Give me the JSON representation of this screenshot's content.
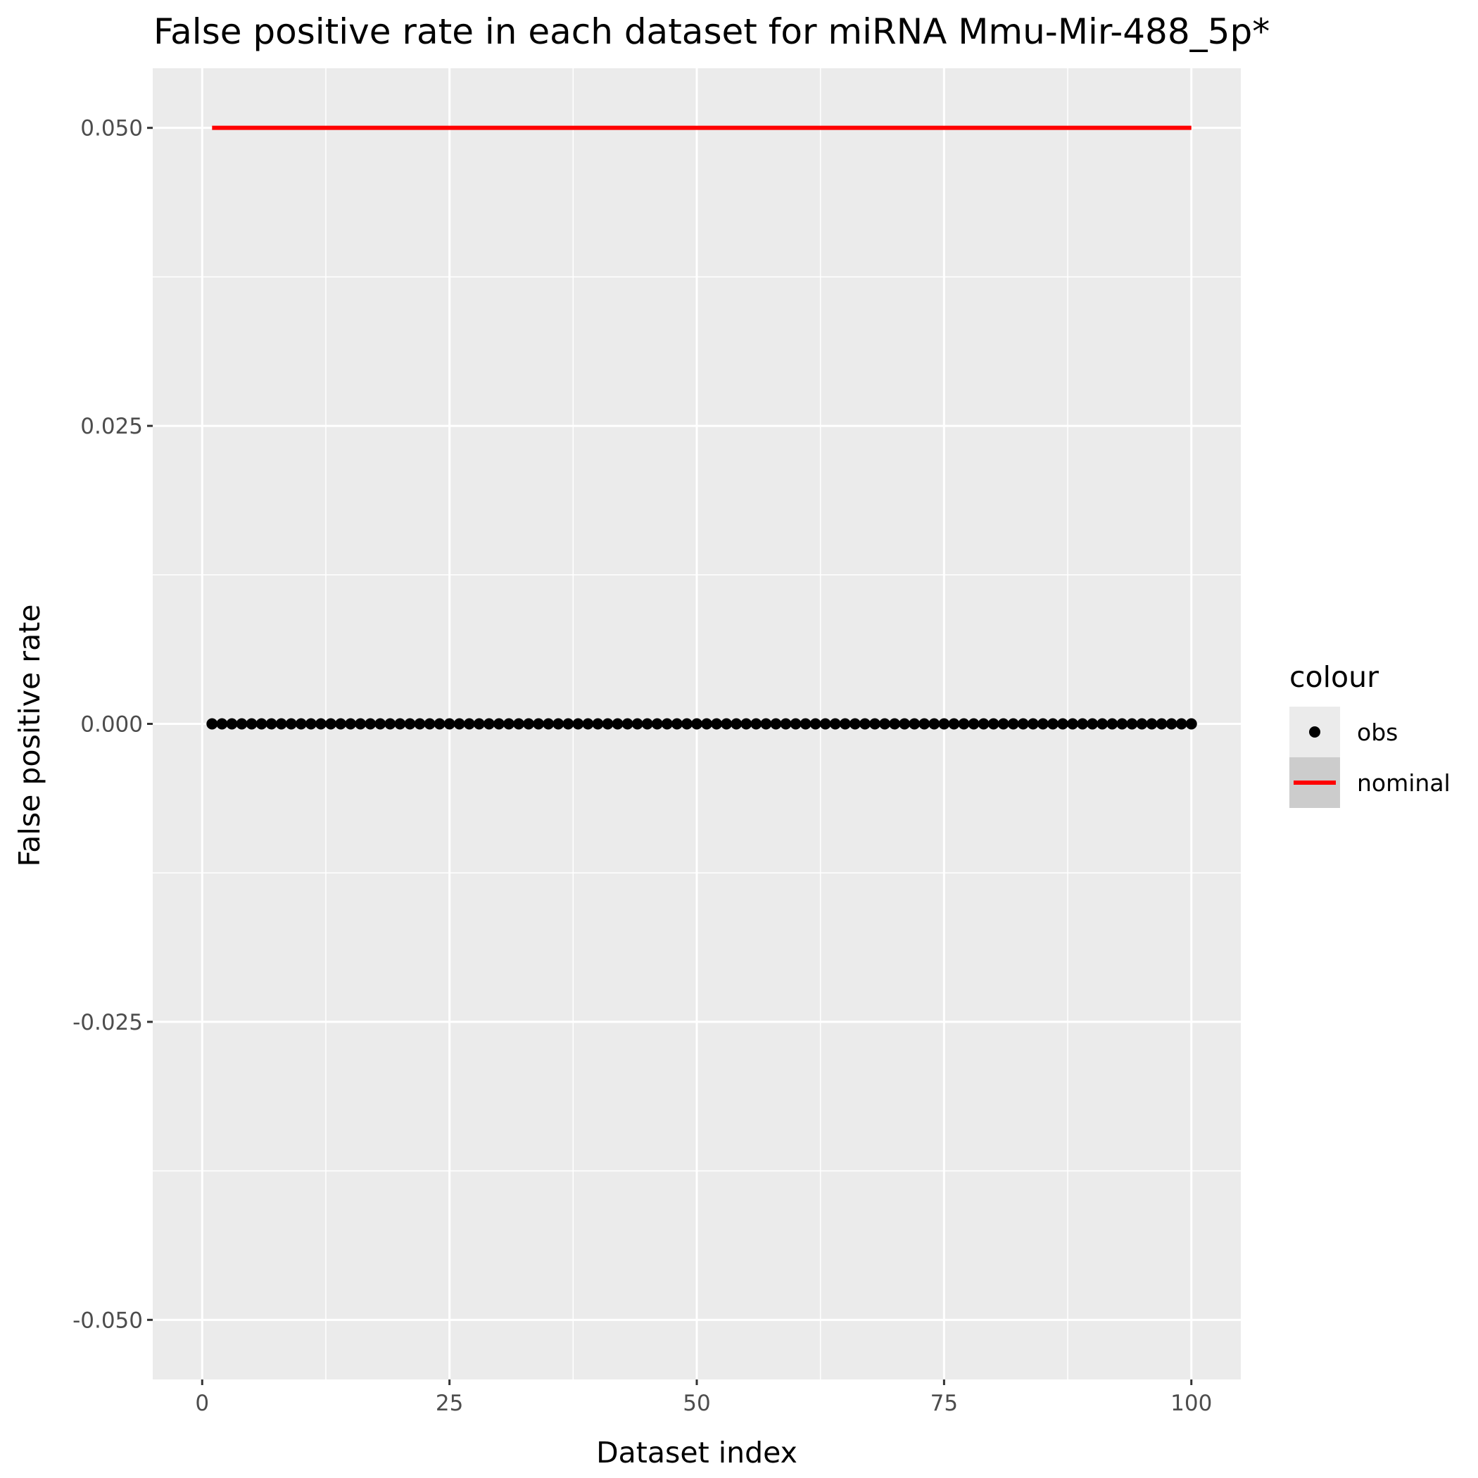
{
  "chart_data": {
    "type": "scatter",
    "title": "False positive rate in each dataset for miRNA Mmu-Mir-488_5p*",
    "xlabel": "Dataset index",
    "ylabel": "False positive rate",
    "xlim": [
      -5,
      105
    ],
    "ylim": [
      -0.055,
      0.055
    ],
    "x_ticks": [
      0,
      25,
      50,
      75,
      100
    ],
    "x_tick_labels": [
      "0",
      "25",
      "50",
      "75",
      "100"
    ],
    "y_ticks": [
      -0.05,
      -0.025,
      0,
      0.025,
      0.05
    ],
    "y_tick_labels": [
      "-0.050",
      "-0.025",
      "0.000",
      "0.025",
      "0.050"
    ],
    "grid": true,
    "legend": {
      "title": "colour",
      "position": "right",
      "entries": [
        {
          "label": "obs",
          "marker": "point",
          "color": "#000000"
        },
        {
          "label": "nominal",
          "marker": "line",
          "color": "#ff0000"
        }
      ]
    },
    "series": [
      {
        "name": "obs",
        "kind": "points",
        "color": "#000000",
        "x_range": [
          1,
          100
        ],
        "constant_y": 0
      },
      {
        "name": "nominal",
        "kind": "line",
        "color": "#ff0000",
        "x": [
          1,
          100
        ],
        "y": [
          0.05,
          0.05
        ]
      }
    ],
    "panel_background": "#ebebeb",
    "grid_color": "#ffffff"
  }
}
